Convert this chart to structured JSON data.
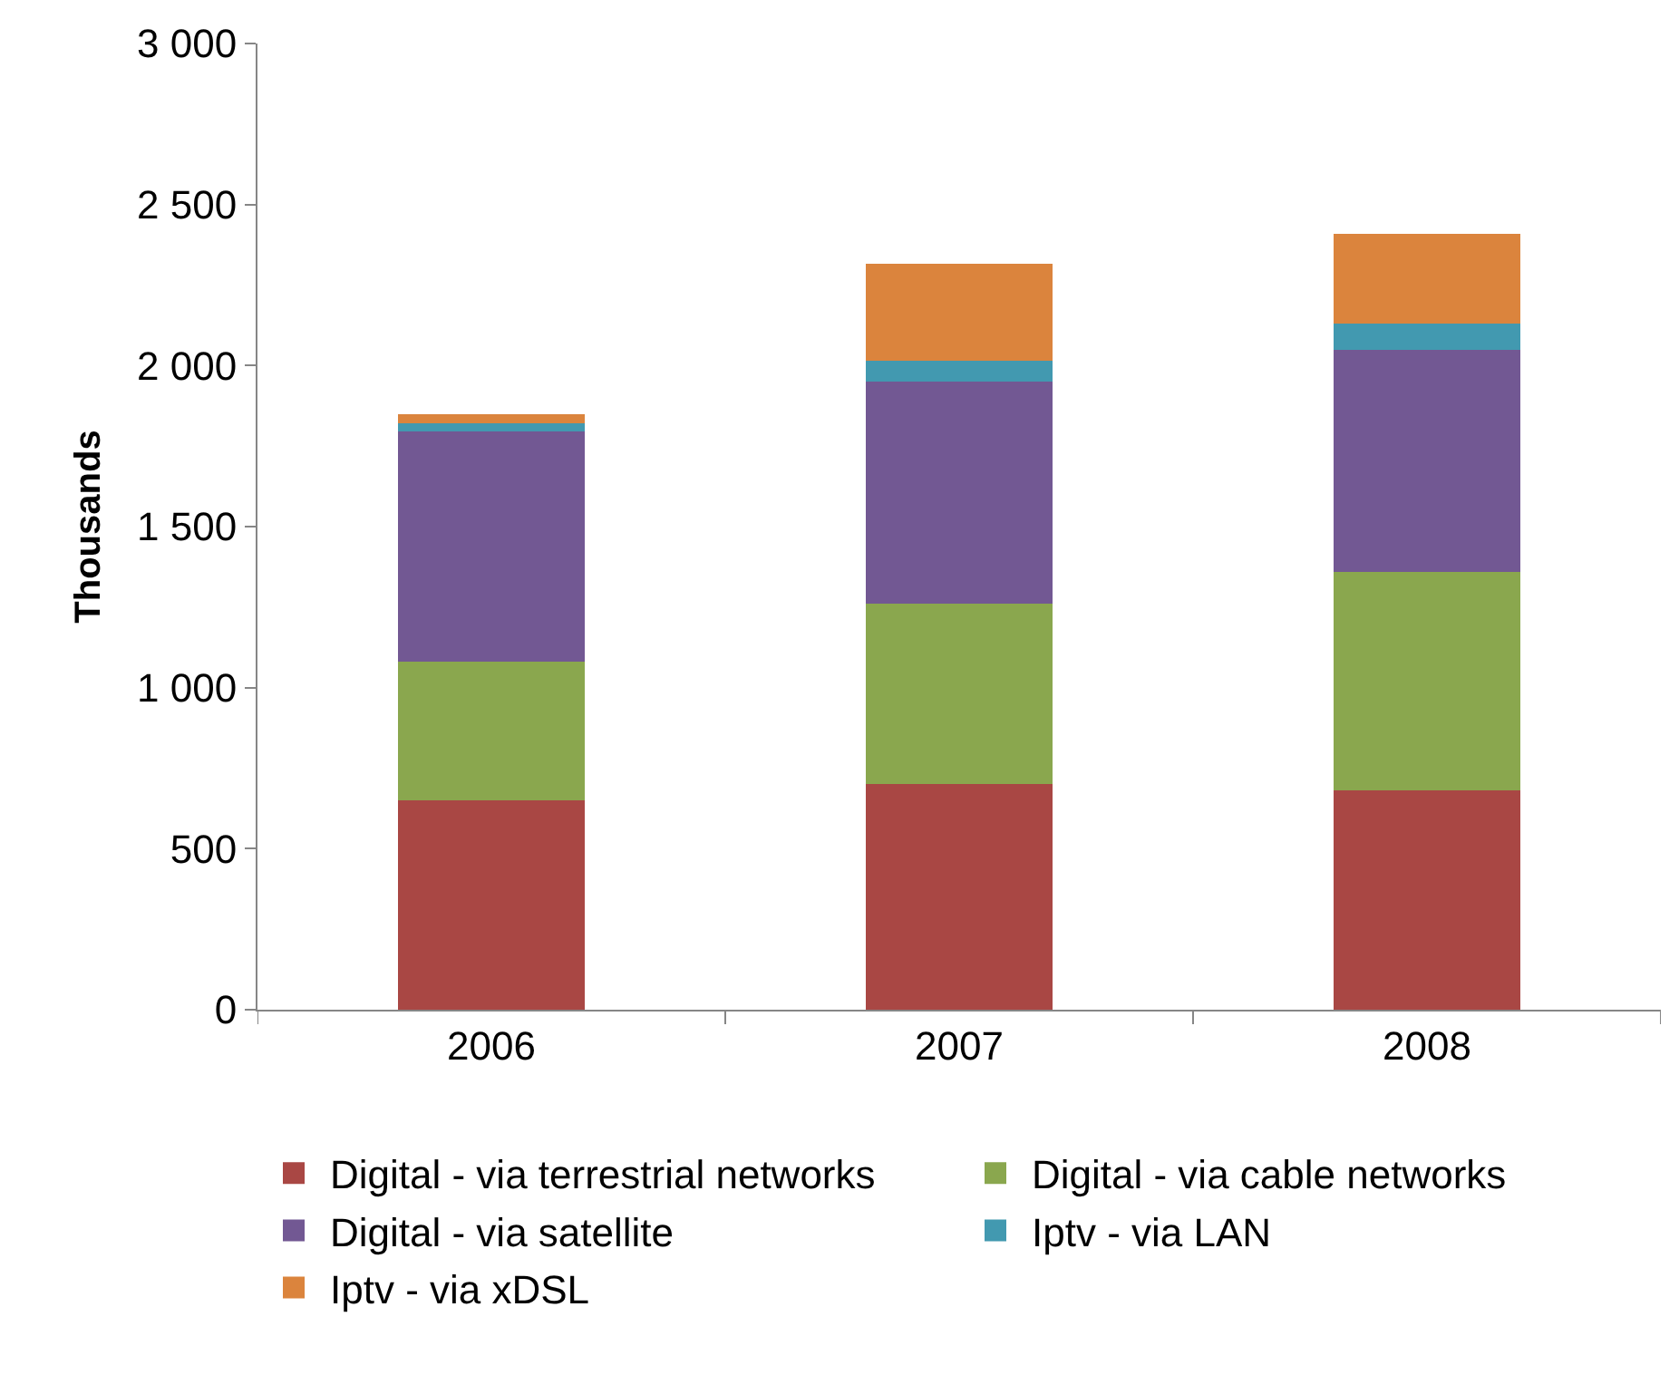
{
  "chart_data": {
    "type": "bar",
    "stacked": true,
    "ylabel": "Thousands",
    "categories": [
      "2006",
      "2007",
      "2008"
    ],
    "series": [
      {
        "name": "Digital - via terrestrial networks",
        "color": "#a94744",
        "values": [
          650,
          700,
          680
        ]
      },
      {
        "name": "Digital - via cable networks",
        "color": "#8aa74e",
        "values": [
          430,
          560,
          680
        ]
      },
      {
        "name": "Digital - via satellite",
        "color": "#725893",
        "values": [
          715,
          690,
          690
        ]
      },
      {
        "name": "Iptv - via LAN",
        "color": "#4299b0",
        "values": [
          25,
          65,
          80
        ]
      },
      {
        "name": "Iptv - via xDSL",
        "color": "#db843d",
        "values": [
          30,
          300,
          280
        ]
      }
    ],
    "ylim": [
      0,
      3000
    ],
    "yticks": [
      0,
      500,
      {
        "value": 1000,
        "label": "1 000"
      },
      {
        "value": 1500,
        "label": "1 500"
      },
      {
        "value": 2000,
        "label": "2 000"
      },
      {
        "value": 2500,
        "label": "2 500"
      },
      {
        "value": 3000,
        "label": "3 000"
      }
    ],
    "grid": false,
    "legend": "bottom"
  }
}
